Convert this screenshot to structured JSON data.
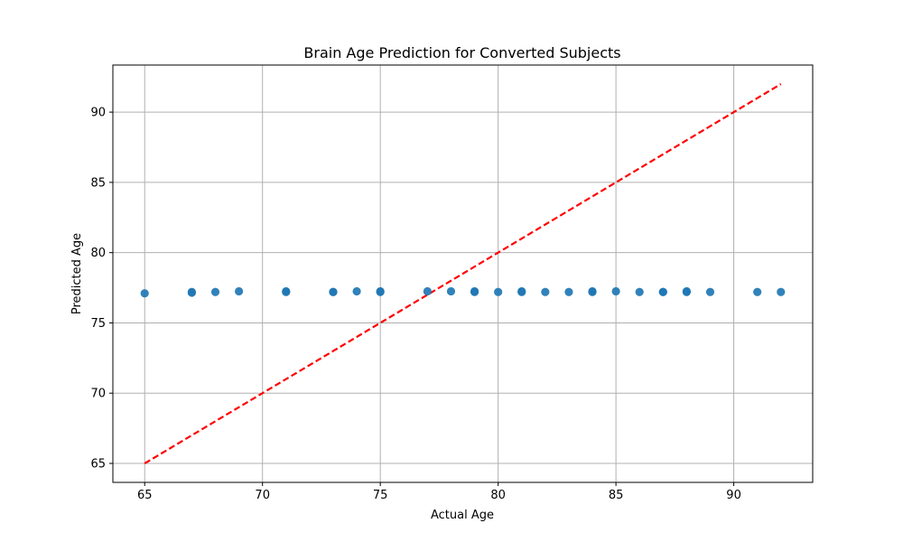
{
  "chart_data": {
    "type": "scatter",
    "title": "Brain Age Prediction for Converted Subjects",
    "xlabel": "Actual Age",
    "ylabel": "Predicted Age",
    "xlim": [
      63.65,
      93.35
    ],
    "ylim": [
      63.65,
      93.35
    ],
    "xticks": [
      65,
      70,
      75,
      80,
      85,
      90
    ],
    "yticks": [
      65,
      70,
      75,
      80,
      85,
      90
    ],
    "grid": true,
    "marker_color": "#1f77b4",
    "reference_line_color": "#ff0000",
    "points": {
      "x": [
        65,
        67,
        67,
        68,
        69,
        71,
        71,
        73,
        73,
        74,
        75,
        75,
        77,
        78,
        79,
        79,
        80,
        81,
        81,
        82,
        83,
        84,
        84,
        85,
        86,
        87,
        87,
        88,
        88,
        89,
        91,
        92
      ],
      "y": [
        77.1,
        77.15,
        77.2,
        77.2,
        77.25,
        77.2,
        77.25,
        77.2,
        77.2,
        77.25,
        77.2,
        77.25,
        77.25,
        77.25,
        77.2,
        77.25,
        77.2,
        77.2,
        77.25,
        77.2,
        77.2,
        77.2,
        77.25,
        77.25,
        77.2,
        77.2,
        77.2,
        77.2,
        77.25,
        77.2,
        77.2,
        77.2
      ]
    },
    "reference_line": {
      "x": [
        65,
        92
      ],
      "y": [
        65,
        92
      ],
      "style": "dashed"
    }
  }
}
